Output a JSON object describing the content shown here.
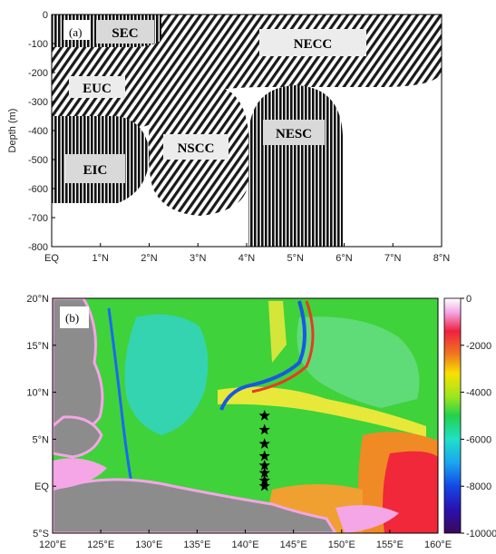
{
  "panel_a": {
    "label": "(a)",
    "ylabel": "Depth (m)",
    "yticks": [
      "0",
      "-100",
      "-200",
      "-300",
      "-400",
      "-500",
      "-600",
      "-700",
      "-800"
    ],
    "xticks": [
      "EQ",
      "1°N",
      "2°N",
      "3°N",
      "4°N",
      "5°N",
      "6°N",
      "7°N",
      "8°N"
    ],
    "currents": {
      "sec": "SEC",
      "necc": "NECC",
      "euc": "EUC",
      "nscc": "NSCC",
      "nesc": "NESC",
      "eic": "EIC"
    }
  },
  "panel_b": {
    "label": "(b)",
    "yticks": [
      "20°N",
      "15°N",
      "10°N",
      "5°N",
      "EQ",
      "5°S"
    ],
    "xticks": [
      "120°E",
      "125°E",
      "130°E",
      "135°E",
      "140°E",
      "145°E",
      "150°E",
      "155°E",
      "160°E"
    ],
    "colorbar_ticks": [
      "0",
      "-2000",
      "-4000",
      "-6000",
      "-8000",
      "-10000"
    ]
  },
  "chart_data": [
    {
      "type": "area",
      "title": "",
      "xlabel": "",
      "ylabel": "Depth (m)",
      "xlim_deg_N": [
        0,
        8
      ],
      "ylim": [
        -800,
        0
      ],
      "grid": false,
      "regions": [
        {
          "name": "SEC",
          "pattern": "vertical stripes",
          "lat_range": [
            0,
            1.1
          ],
          "depth_range": [
            0,
            -70
          ]
        },
        {
          "name": "NECC",
          "pattern": "diagonal hatch",
          "lat_range": [
            0,
            8
          ],
          "depth_range": [
            0,
            -260
          ]
        },
        {
          "name": "EUC",
          "pattern": "diagonal hatch",
          "lat_range": [
            0,
            2.2
          ],
          "depth_range": [
            -100,
            -320
          ]
        },
        {
          "name": "NSCC",
          "pattern": "diagonal hatch",
          "lat_range": [
            2,
            4.2
          ],
          "depth_range": [
            -210,
            -700
          ]
        },
        {
          "name": "NESC",
          "pattern": "vertical stripes",
          "lat_range": [
            4,
            6
          ],
          "depth_range": [
            -240,
            -800
          ]
        },
        {
          "name": "EIC",
          "pattern": "vertical stripes",
          "lat_range": [
            0,
            2
          ],
          "depth_range": [
            -350,
            -650
          ]
        }
      ]
    },
    {
      "type": "heatmap",
      "title": "",
      "xlabel": "",
      "ylabel": "",
      "xlim_deg_E": [
        120,
        160
      ],
      "ylim_deg": [
        -5,
        20
      ],
      "colorbar": {
        "min": -10000,
        "max": 0,
        "ticks": [
          0,
          -2000,
          -4000,
          -6000,
          -8000,
          -10000
        ]
      },
      "stations": [
        {
          "lon": 142,
          "lat": 7.5
        },
        {
          "lon": 142,
          "lat": 6
        },
        {
          "lon": 142,
          "lat": 4.5
        },
        {
          "lon": 142,
          "lat": 3.2
        },
        {
          "lon": 142,
          "lat": 2.2
        },
        {
          "lon": 142,
          "lat": 1.4
        },
        {
          "lon": 142,
          "lat": 0.6
        },
        {
          "lon": 142,
          "lat": 0
        }
      ]
    }
  ]
}
